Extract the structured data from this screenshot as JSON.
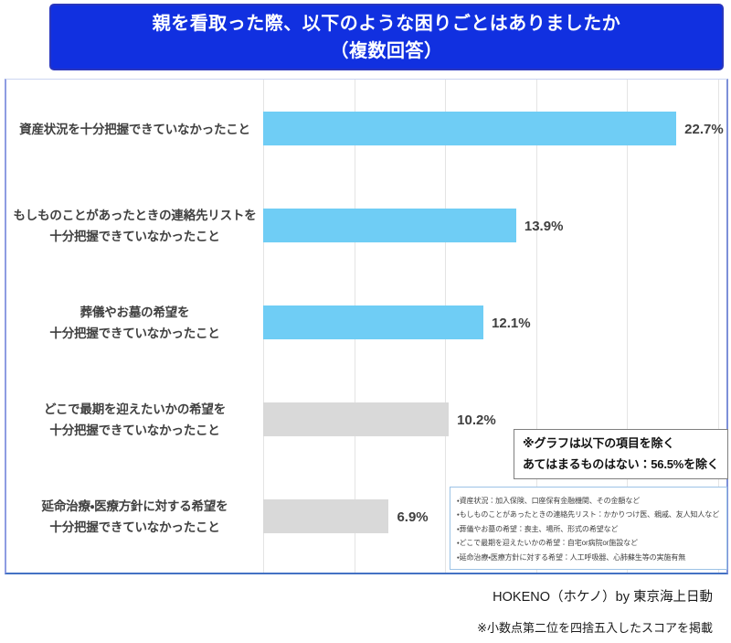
{
  "header": {
    "title_line1": "親を看取った際、以下のような困りごとはありましたか",
    "title_line2": "（複数回答）",
    "bg_color": "#1130e0",
    "text_color": "#ffffff"
  },
  "chart_data": {
    "type": "bar",
    "orientation": "horizontal",
    "title": "親を看取った際、以下のような困りごとはありましたか（複数回答）",
    "unit": "%",
    "xlim": [
      0,
      25
    ],
    "gridline_step": 5,
    "grid": true,
    "legend": "none",
    "categories": [
      "資産状況を十分把握できていなかったこと",
      "もしものことがあったときの連絡先リストを十分把握できていなかったこと",
      "葬儀やお墓の希望を十分把握できていなかったこと",
      "どこで最期を迎えたいかの希望を十分把握できていなかったこと",
      "延命治療・医療方針に対する希望を十分把握できていなかったこと"
    ],
    "category_lines": [
      [
        "資産状況を十分把握できていなかったこと"
      ],
      [
        "もしものことがあったときの連絡先リストを",
        "十分把握できていなかったこと"
      ],
      [
        "葬儀やお墓の希望を",
        "十分把握できていなかったこと"
      ],
      [
        "どこで最期を迎えたいかの希望を",
        "十分把握できていなかったこと"
      ],
      [
        "延命治療・医療方針に対する希望を",
        "十分把握できていなかったこと"
      ]
    ],
    "values": [
      22.7,
      13.9,
      12.1,
      10.2,
      6.9
    ],
    "value_labels": [
      "22.7%",
      "13.9%",
      "12.1%",
      "10.2%",
      "6.9%"
    ],
    "bar_colors": [
      "#6fcdf5",
      "#6fcdf5",
      "#6fcdf5",
      "#d9d9d9",
      "#d9d9d9"
    ],
    "colors": {
      "highlight_blue": "#6fcdf5",
      "neutral_gray": "#d9d9d9",
      "gridline": "#e4e4e4",
      "plot_border": "#4472c4"
    }
  },
  "note_box": {
    "line1": "※グラフは以下の項目を除く",
    "line2": "あてはまるものはない：56.5%を除く"
  },
  "details_box": {
    "items": [
      "・資産状況：加入保険、口座保有金融機関、その金額など",
      "・もしものことがあったときの連絡先リスト：かかりつけ医、親戚、友人知人など",
      "・葬儀やお墓の希望：喪主、場所、形式の希望など",
      "・どこで最期を迎えたいかの希望：自宅or病院or施設など",
      "・延命治療・医療方針に対する希望：人工呼吸器、心肺蘇生等の実施有無"
    ]
  },
  "footer": {
    "credit": "HOKENO（ホケノ）by 東京海上日動",
    "note": "※小数点第二位を四捨五入したスコアを掲載"
  }
}
